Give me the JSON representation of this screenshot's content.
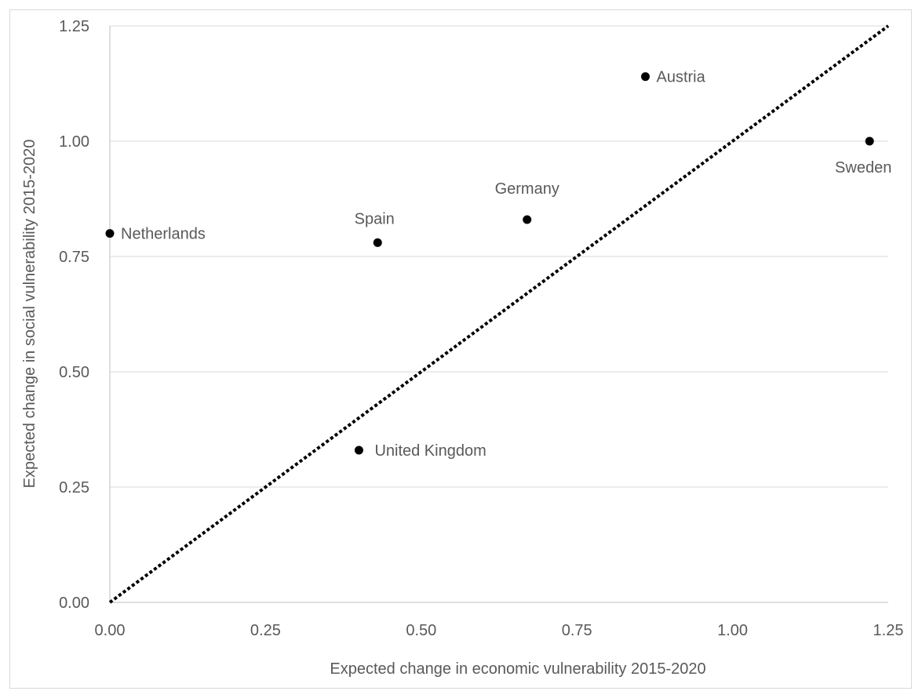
{
  "chart_data": {
    "type": "scatter",
    "title": "",
    "xlabel": "Expected change in economic vulnerability 2015-2020",
    "ylabel": "Expected change in social vulnerability 2015-2020",
    "xlim": [
      0,
      1.25
    ],
    "ylim": [
      0,
      1.25
    ],
    "xticks": [
      "0.00",
      "0.25",
      "0.50",
      "0.75",
      "1.00",
      "1.25"
    ],
    "yticks": [
      "0.00",
      "0.25",
      "0.50",
      "0.75",
      "1.00",
      "1.25"
    ],
    "grid": "horizontal",
    "legend": "none",
    "points": [
      {
        "label": "Netherlands",
        "x": 0.0,
        "y": 0.8
      },
      {
        "label": "Spain",
        "x": 0.43,
        "y": 0.78
      },
      {
        "label": "Germany",
        "x": 0.67,
        "y": 0.83
      },
      {
        "label": "Austria",
        "x": 0.86,
        "y": 1.14
      },
      {
        "label": "Sweden",
        "x": 1.22,
        "y": 1.0
      },
      {
        "label": "United Kingdom",
        "x": 0.4,
        "y": 0.33
      }
    ],
    "reference_line": {
      "from": [
        0,
        0
      ],
      "to": [
        1.25,
        1.25
      ],
      "style": "dotted"
    },
    "colors": {
      "marker": "#000000",
      "grid": "#d9d9d9",
      "axis": "#bfbfbf",
      "text": "#595959"
    }
  }
}
